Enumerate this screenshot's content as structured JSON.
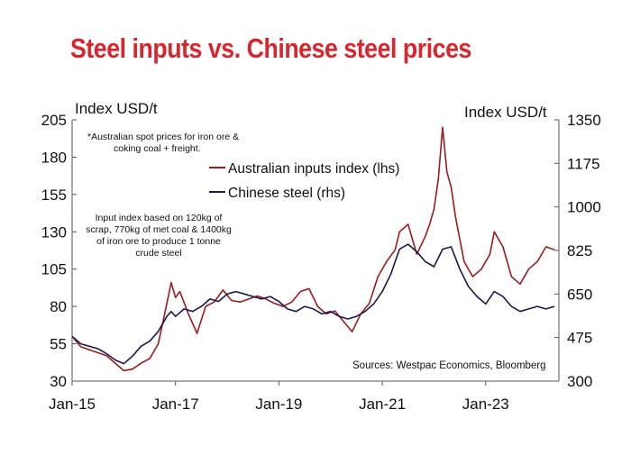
{
  "title": "Steel inputs vs. Chinese steel prices",
  "chart_data": {
    "type": "line",
    "x_ticks": [
      "Jan-15",
      "Jan-17",
      "Jan-19",
      "Jan-21",
      "Jan-23"
    ],
    "x_range": [
      "2015-01",
      "2024-06"
    ],
    "ylabel_left": "Index USD/t",
    "ylabel_right": "Index USD/t",
    "ylim_left": [
      30,
      205
    ],
    "ylim_right": [
      300,
      1350
    ],
    "yticks_left": [
      30,
      55,
      80,
      105,
      130,
      155,
      180,
      205
    ],
    "yticks_right": [
      300,
      475,
      650,
      825,
      1000,
      1175,
      1350
    ],
    "grid": false,
    "legend_position": "top-center",
    "note_top": [
      "*Australian spot prices for iron ore &",
      "coking coal + freight."
    ],
    "note_mid": [
      "Input index based on 120kg of",
      "scrap, 770kg of met coal & 1400kg",
      "of iron ore to produce 1 tonne",
      "crude steel"
    ],
    "source": "Sources: Westpac Economics, Bloomberg",
    "series": [
      {
        "name": "Australian inputs index (lhs)",
        "axis": "left",
        "color": "#9b1b1f",
        "points": [
          [
            "2015-01",
            60
          ],
          [
            "2015-03",
            53
          ],
          [
            "2015-05",
            51
          ],
          [
            "2015-07",
            49
          ],
          [
            "2015-09",
            47
          ],
          [
            "2015-11",
            42
          ],
          [
            "2016-01",
            37
          ],
          [
            "2016-03",
            38
          ],
          [
            "2016-05",
            42
          ],
          [
            "2016-07",
            45
          ],
          [
            "2016-09",
            55
          ],
          [
            "2016-11",
            82
          ],
          [
            "2016-12",
            96
          ],
          [
            "2017-01",
            86
          ],
          [
            "2017-02",
            90
          ],
          [
            "2017-04",
            75
          ],
          [
            "2017-06",
            62
          ],
          [
            "2017-08",
            80
          ],
          [
            "2017-10",
            83
          ],
          [
            "2017-12",
            91
          ],
          [
            "2018-02",
            84
          ],
          [
            "2018-04",
            83
          ],
          [
            "2018-06",
            85
          ],
          [
            "2018-08",
            87
          ],
          [
            "2018-10",
            85
          ],
          [
            "2018-12",
            82
          ],
          [
            "2019-02",
            80
          ],
          [
            "2019-04",
            83
          ],
          [
            "2019-06",
            90
          ],
          [
            "2019-08",
            92
          ],
          [
            "2019-10",
            80
          ],
          [
            "2019-12",
            75
          ],
          [
            "2020-02",
            77
          ],
          [
            "2020-04",
            70
          ],
          [
            "2020-06",
            63
          ],
          [
            "2020-08",
            75
          ],
          [
            "2020-10",
            82
          ],
          [
            "2020-12",
            100
          ],
          [
            "2021-02",
            110
          ],
          [
            "2021-04",
            118
          ],
          [
            "2021-05",
            130
          ],
          [
            "2021-07",
            135
          ],
          [
            "2021-09",
            115
          ],
          [
            "2021-11",
            127
          ],
          [
            "2021-12",
            135
          ],
          [
            "2022-01",
            145
          ],
          [
            "2022-02",
            165
          ],
          [
            "2022-03",
            200
          ],
          [
            "2022-04",
            170
          ],
          [
            "2022-05",
            160
          ],
          [
            "2022-06",
            140
          ],
          [
            "2022-08",
            110
          ],
          [
            "2022-10",
            100
          ],
          [
            "2022-12",
            105
          ],
          [
            "2023-02",
            115
          ],
          [
            "2023-03",
            130
          ],
          [
            "2023-05",
            120
          ],
          [
            "2023-07",
            100
          ],
          [
            "2023-09",
            95
          ],
          [
            "2023-11",
            105
          ],
          [
            "2024-01",
            110
          ],
          [
            "2024-03",
            120
          ],
          [
            "2024-05",
            118
          ]
        ]
      },
      {
        "name": "Chinese steel  (rhs)",
        "axis": "right",
        "color": "#1a1a4e",
        "points": [
          [
            "2015-01",
            480
          ],
          [
            "2015-03",
            450
          ],
          [
            "2015-05",
            440
          ],
          [
            "2015-07",
            430
          ],
          [
            "2015-09",
            410
          ],
          [
            "2015-11",
            385
          ],
          [
            "2016-01",
            370
          ],
          [
            "2016-03",
            400
          ],
          [
            "2016-05",
            440
          ],
          [
            "2016-07",
            460
          ],
          [
            "2016-09",
            500
          ],
          [
            "2016-11",
            560
          ],
          [
            "2016-12",
            580
          ],
          [
            "2017-01",
            560
          ],
          [
            "2017-03",
            590
          ],
          [
            "2017-05",
            580
          ],
          [
            "2017-07",
            600
          ],
          [
            "2017-09",
            630
          ],
          [
            "2017-11",
            620
          ],
          [
            "2018-01",
            650
          ],
          [
            "2018-03",
            660
          ],
          [
            "2018-05",
            650
          ],
          [
            "2018-07",
            640
          ],
          [
            "2018-09",
            630
          ],
          [
            "2018-11",
            640
          ],
          [
            "2019-01",
            620
          ],
          [
            "2019-03",
            590
          ],
          [
            "2019-05",
            580
          ],
          [
            "2019-07",
            600
          ],
          [
            "2019-09",
            590
          ],
          [
            "2019-11",
            570
          ],
          [
            "2020-01",
            580
          ],
          [
            "2020-03",
            560
          ],
          [
            "2020-05",
            550
          ],
          [
            "2020-07",
            560
          ],
          [
            "2020-09",
            580
          ],
          [
            "2020-11",
            610
          ],
          [
            "2021-01",
            660
          ],
          [
            "2021-03",
            730
          ],
          [
            "2021-05",
            830
          ],
          [
            "2021-07",
            850
          ],
          [
            "2021-09",
            820
          ],
          [
            "2021-11",
            780
          ],
          [
            "2022-01",
            760
          ],
          [
            "2022-03",
            830
          ],
          [
            "2022-05",
            840
          ],
          [
            "2022-07",
            750
          ],
          [
            "2022-09",
            680
          ],
          [
            "2022-11",
            640
          ],
          [
            "2023-01",
            610
          ],
          [
            "2023-03",
            660
          ],
          [
            "2023-05",
            640
          ],
          [
            "2023-07",
            600
          ],
          [
            "2023-09",
            580
          ],
          [
            "2023-11",
            590
          ],
          [
            "2024-01",
            600
          ],
          [
            "2024-03",
            590
          ],
          [
            "2024-05",
            600
          ]
        ]
      }
    ]
  }
}
